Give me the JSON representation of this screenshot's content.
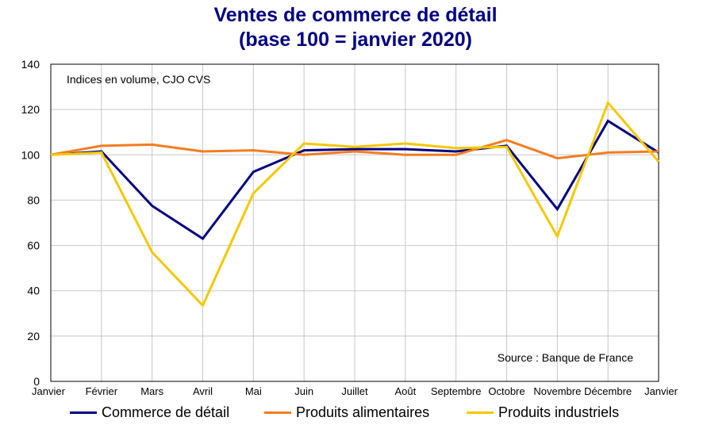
{
  "chart_data": {
    "type": "line",
    "title": "Ventes de commerce de détail",
    "subtitle": "(base 100 = janvier 2020)",
    "annotation": "Indices en volume, CJO CVS",
    "source": "Source : Banque de France",
    "categories": [
      "Janvier",
      "Février",
      "Mars",
      "Avril",
      "Mai",
      "Juin",
      "Juillet",
      "Août",
      "Septembre",
      "Octobre",
      "Novembre",
      "Décembre",
      "Janvier"
    ],
    "ylim": [
      0,
      140
    ],
    "yticks": [
      0,
      20,
      40,
      60,
      80,
      100,
      120,
      140
    ],
    "grid": true,
    "legend_position": "bottom",
    "series": [
      {
        "name": "Commerce de détail",
        "color": "#000080",
        "values": [
          100,
          101.5,
          77.5,
          63,
          92.5,
          102,
          102.5,
          102.5,
          101.5,
          104,
          76,
          115,
          101
        ]
      },
      {
        "name": "Produits alimentaires",
        "color": "#F47C20",
        "values": [
          100,
          104,
          104.5,
          101.5,
          102,
          100,
          101.5,
          100,
          100,
          106.5,
          98.5,
          101,
          101.5
        ]
      },
      {
        "name": "Produits industriels",
        "color": "#F5C800",
        "values": [
          100,
          101,
          57,
          33.5,
          83,
          105,
          103.5,
          105,
          103,
          103.5,
          64,
          123,
          97
        ]
      }
    ]
  }
}
